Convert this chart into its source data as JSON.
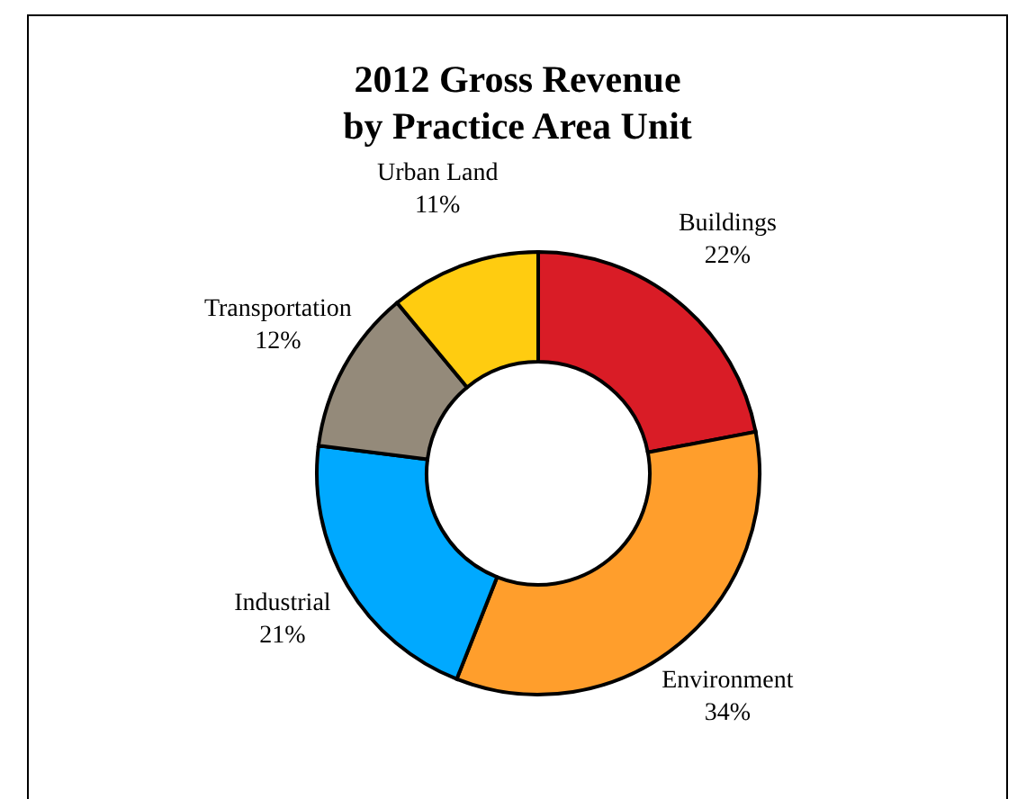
{
  "chart_data": {
    "type": "donut",
    "title": "2012 Gross Revenue\nby Practice Area Unit",
    "categories": [
      "Buildings",
      "Environment",
      "Industrial",
      "Transportation",
      "Urban Land"
    ],
    "values": [
      22,
      34,
      21,
      12,
      11
    ],
    "value_labels": [
      "22%",
      "34%",
      "21%",
      "12%",
      "11%"
    ],
    "colors": [
      "#d91c26",
      "#ff9e2c",
      "#00a9ff",
      "#948a7a",
      "#ffcc10"
    ],
    "legend": false
  }
}
